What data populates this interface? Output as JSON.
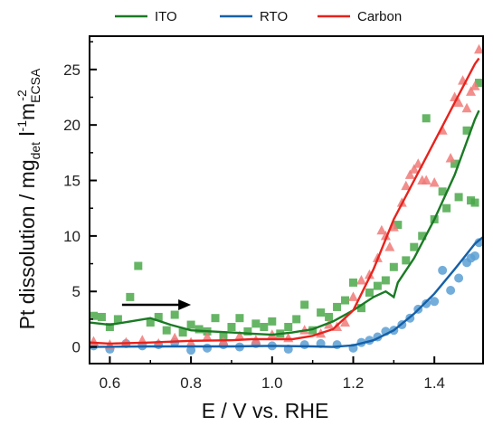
{
  "chart_data": {
    "type": "scatter",
    "title": "",
    "xlabel": "E / V vs. RHE",
    "ylabel": {
      "main": "Pt dissolution / mg",
      "sub_det": "det",
      "unit_l": " l",
      "sup_l": "-1",
      "unit_m": "m",
      "sub_ecsa": "ECSA",
      "sup_m": "-2"
    },
    "xlim": [
      0.55,
      1.52
    ],
    "ylim": [
      -1.5,
      28
    ],
    "xticks": [
      0.6,
      0.8,
      1.0,
      1.2,
      1.4
    ],
    "xtick_labels": [
      "0.6",
      "0.8",
      "1.0",
      "1.2",
      "1.4"
    ],
    "yticks": [
      0,
      5,
      10,
      15,
      20,
      25
    ],
    "ytick_labels": [
      "0",
      "5",
      "10",
      "15",
      "20",
      "25"
    ],
    "legend_position": "top",
    "annotation": "arrow pointing in the direction of increasing potential",
    "series": [
      {
        "name": "ITO",
        "color": "#1a7a24",
        "marker_color": "#4aa84a",
        "marker": "square",
        "line": [
          [
            0.55,
            2.2
          ],
          [
            0.6,
            2.0
          ],
          [
            0.65,
            2.3
          ],
          [
            0.7,
            2.6
          ],
          [
            0.75,
            2.0
          ],
          [
            0.8,
            1.5
          ],
          [
            0.85,
            1.4
          ],
          [
            0.9,
            1.3
          ],
          [
            0.95,
            1.2
          ],
          [
            1.0,
            1.1
          ],
          [
            1.05,
            1.3
          ],
          [
            1.1,
            1.6
          ],
          [
            1.15,
            2.3
          ],
          [
            1.2,
            3.3
          ],
          [
            1.25,
            4.5
          ],
          [
            1.28,
            5.0
          ],
          [
            1.3,
            4.5
          ],
          [
            1.31,
            5.8
          ],
          [
            1.35,
            8.0
          ],
          [
            1.4,
            11.5
          ],
          [
            1.45,
            15.5
          ],
          [
            1.5,
            20.5
          ],
          [
            1.51,
            21.3
          ]
        ],
        "points": [
          [
            0.56,
            2.8
          ],
          [
            0.58,
            2.7
          ],
          [
            0.6,
            1.8
          ],
          [
            0.62,
            2.5
          ],
          [
            0.65,
            4.5
          ],
          [
            0.67,
            7.3
          ],
          [
            0.7,
            2.2
          ],
          [
            0.72,
            2.7
          ],
          [
            0.74,
            1.5
          ],
          [
            0.76,
            2.9
          ],
          [
            0.78,
            1.3
          ],
          [
            0.8,
            2.0
          ],
          [
            0.82,
            1.6
          ],
          [
            0.84,
            1.4
          ],
          [
            0.86,
            2.6
          ],
          [
            0.88,
            1.0
          ],
          [
            0.9,
            1.8
          ],
          [
            0.92,
            2.6
          ],
          [
            0.94,
            1.4
          ],
          [
            0.96,
            2.1
          ],
          [
            0.98,
            1.8
          ],
          [
            1.0,
            2.3
          ],
          [
            1.02,
            1.2
          ],
          [
            1.04,
            1.8
          ],
          [
            1.06,
            2.5
          ],
          [
            1.08,
            3.8
          ],
          [
            1.1,
            1.5
          ],
          [
            1.12,
            3.1
          ],
          [
            1.14,
            2.7
          ],
          [
            1.16,
            3.6
          ],
          [
            1.18,
            4.2
          ],
          [
            1.2,
            5.8
          ],
          [
            1.22,
            3.5
          ],
          [
            1.24,
            4.9
          ],
          [
            1.26,
            5.5
          ],
          [
            1.28,
            6.0
          ],
          [
            1.3,
            7.2
          ],
          [
            1.31,
            11.0
          ],
          [
            1.33,
            7.8
          ],
          [
            1.35,
            9.0
          ],
          [
            1.37,
            10.0
          ],
          [
            1.38,
            20.6
          ],
          [
            1.4,
            11.5
          ],
          [
            1.42,
            14.0
          ],
          [
            1.43,
            12.5
          ],
          [
            1.45,
            16.5
          ],
          [
            1.46,
            13.5
          ],
          [
            1.48,
            19.5
          ],
          [
            1.49,
            13.2
          ],
          [
            1.5,
            13.0
          ],
          [
            1.51,
            23.8
          ]
        ]
      },
      {
        "name": "RTO",
        "color": "#1560a8",
        "marker_color": "#5a9fd4",
        "marker": "circle",
        "line": [
          [
            0.55,
            0.0
          ],
          [
            0.7,
            0.05
          ],
          [
            0.9,
            0.05
          ],
          [
            1.0,
            0.1
          ],
          [
            1.1,
            0.05
          ],
          [
            1.15,
            0.0
          ],
          [
            1.2,
            0.15
          ],
          [
            1.25,
            0.6
          ],
          [
            1.3,
            1.5
          ],
          [
            1.35,
            3.0
          ],
          [
            1.4,
            4.8
          ],
          [
            1.45,
            7.0
          ],
          [
            1.5,
            9.3
          ],
          [
            1.52,
            9.9
          ]
        ],
        "points": [
          [
            0.56,
            0.1
          ],
          [
            0.6,
            -0.2
          ],
          [
            0.64,
            0.3
          ],
          [
            0.68,
            0.1
          ],
          [
            0.72,
            0.2
          ],
          [
            0.76,
            0.4
          ],
          [
            0.8,
            -0.3
          ],
          [
            0.84,
            -0.1
          ],
          [
            0.88,
            0.2
          ],
          [
            0.92,
            0.0
          ],
          [
            0.96,
            0.3
          ],
          [
            1.0,
            0.1
          ],
          [
            1.04,
            -0.2
          ],
          [
            1.08,
            0.2
          ],
          [
            1.12,
            0.3
          ],
          [
            1.16,
            0.2
          ],
          [
            1.2,
            -0.1
          ],
          [
            1.22,
            0.4
          ],
          [
            1.24,
            0.6
          ],
          [
            1.26,
            0.9
          ],
          [
            1.28,
            1.4
          ],
          [
            1.3,
            1.5
          ],
          [
            1.32,
            2.0
          ],
          [
            1.34,
            2.6
          ],
          [
            1.36,
            3.4
          ],
          [
            1.38,
            3.9
          ],
          [
            1.4,
            4.1
          ],
          [
            1.42,
            6.9
          ],
          [
            1.44,
            5.1
          ],
          [
            1.46,
            6.2
          ],
          [
            1.48,
            7.6
          ],
          [
            1.49,
            8.0
          ],
          [
            1.5,
            8.2
          ],
          [
            1.51,
            9.4
          ]
        ]
      },
      {
        "name": "Carbon",
        "color": "#e8221c",
        "marker_color": "#f07a78",
        "marker": "triangle",
        "line": [
          [
            0.55,
            0.4
          ],
          [
            0.6,
            0.3
          ],
          [
            0.65,
            0.35
          ],
          [
            0.7,
            0.4
          ],
          [
            0.8,
            0.55
          ],
          [
            0.9,
            0.6
          ],
          [
            0.95,
            0.7
          ],
          [
            1.0,
            0.7
          ],
          [
            1.05,
            0.7
          ],
          [
            1.1,
            1.0
          ],
          [
            1.15,
            1.6
          ],
          [
            1.2,
            3.3
          ],
          [
            1.25,
            7.0
          ],
          [
            1.3,
            11.5
          ],
          [
            1.35,
            15.0
          ],
          [
            1.4,
            18.5
          ],
          [
            1.45,
            22.0
          ],
          [
            1.5,
            25.5
          ],
          [
            1.51,
            26.0
          ]
        ],
        "points": [
          [
            0.56,
            0.5
          ],
          [
            0.6,
            0.2
          ],
          [
            0.64,
            0.4
          ],
          [
            0.68,
            0.6
          ],
          [
            0.72,
            0.3
          ],
          [
            0.76,
            0.8
          ],
          [
            0.8,
            0.4
          ],
          [
            0.84,
            0.9
          ],
          [
            0.88,
            0.5
          ],
          [
            0.92,
            1.0
          ],
          [
            0.96,
            0.6
          ],
          [
            1.0,
            1.1
          ],
          [
            1.04,
            0.8
          ],
          [
            1.08,
            1.5
          ],
          [
            1.12,
            1.2
          ],
          [
            1.14,
            2.0
          ],
          [
            1.16,
            1.8
          ],
          [
            1.18,
            2.2
          ],
          [
            1.2,
            4.5
          ],
          [
            1.22,
            6.0
          ],
          [
            1.24,
            6.5
          ],
          [
            1.26,
            8.0
          ],
          [
            1.27,
            10.5
          ],
          [
            1.28,
            10.0
          ],
          [
            1.29,
            9.0
          ],
          [
            1.3,
            10.8
          ],
          [
            1.32,
            13.0
          ],
          [
            1.33,
            14.5
          ],
          [
            1.34,
            15.5
          ],
          [
            1.35,
            16.0
          ],
          [
            1.36,
            16.5
          ],
          [
            1.37,
            15.0
          ],
          [
            1.38,
            15.0
          ],
          [
            1.4,
            14.8
          ],
          [
            1.42,
            19.5
          ],
          [
            1.44,
            17.0
          ],
          [
            1.45,
            22.5
          ],
          [
            1.46,
            22.0
          ],
          [
            1.47,
            24.0
          ],
          [
            1.48,
            21.5
          ],
          [
            1.49,
            23.0
          ],
          [
            1.5,
            23.5
          ],
          [
            1.51,
            26.8
          ]
        ]
      }
    ]
  }
}
